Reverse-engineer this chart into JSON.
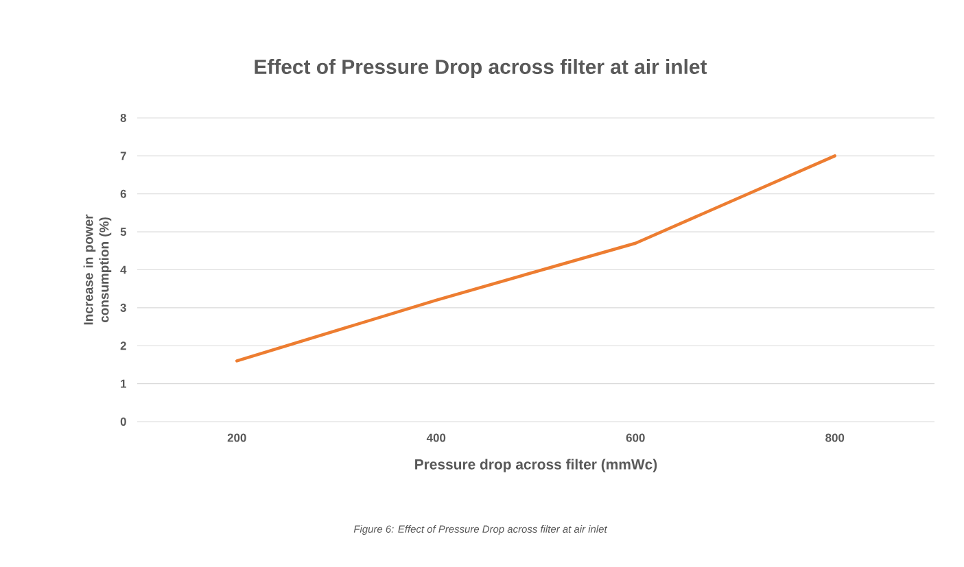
{
  "chart_data": {
    "type": "line",
    "title": "Effect of Pressure Drop across filter at air inlet",
    "xlabel": "Pressure drop across  filter (mmWc)",
    "ylabel": "Increase in power consumption  (%)",
    "categories": [
      "200",
      "400",
      "600",
      "800"
    ],
    "series": [
      {
        "color": "#ed7d31",
        "values": [
          1.6,
          3.2,
          4.7,
          7.0
        ]
      }
    ],
    "ylim": [
      0,
      8
    ],
    "yticks": [
      0,
      1,
      2,
      3,
      4,
      5,
      6,
      7,
      8
    ],
    "grid": "y",
    "annotations": [
      "Figure 6: Effect of Pressure Drop across filter at air inlet"
    ]
  }
}
